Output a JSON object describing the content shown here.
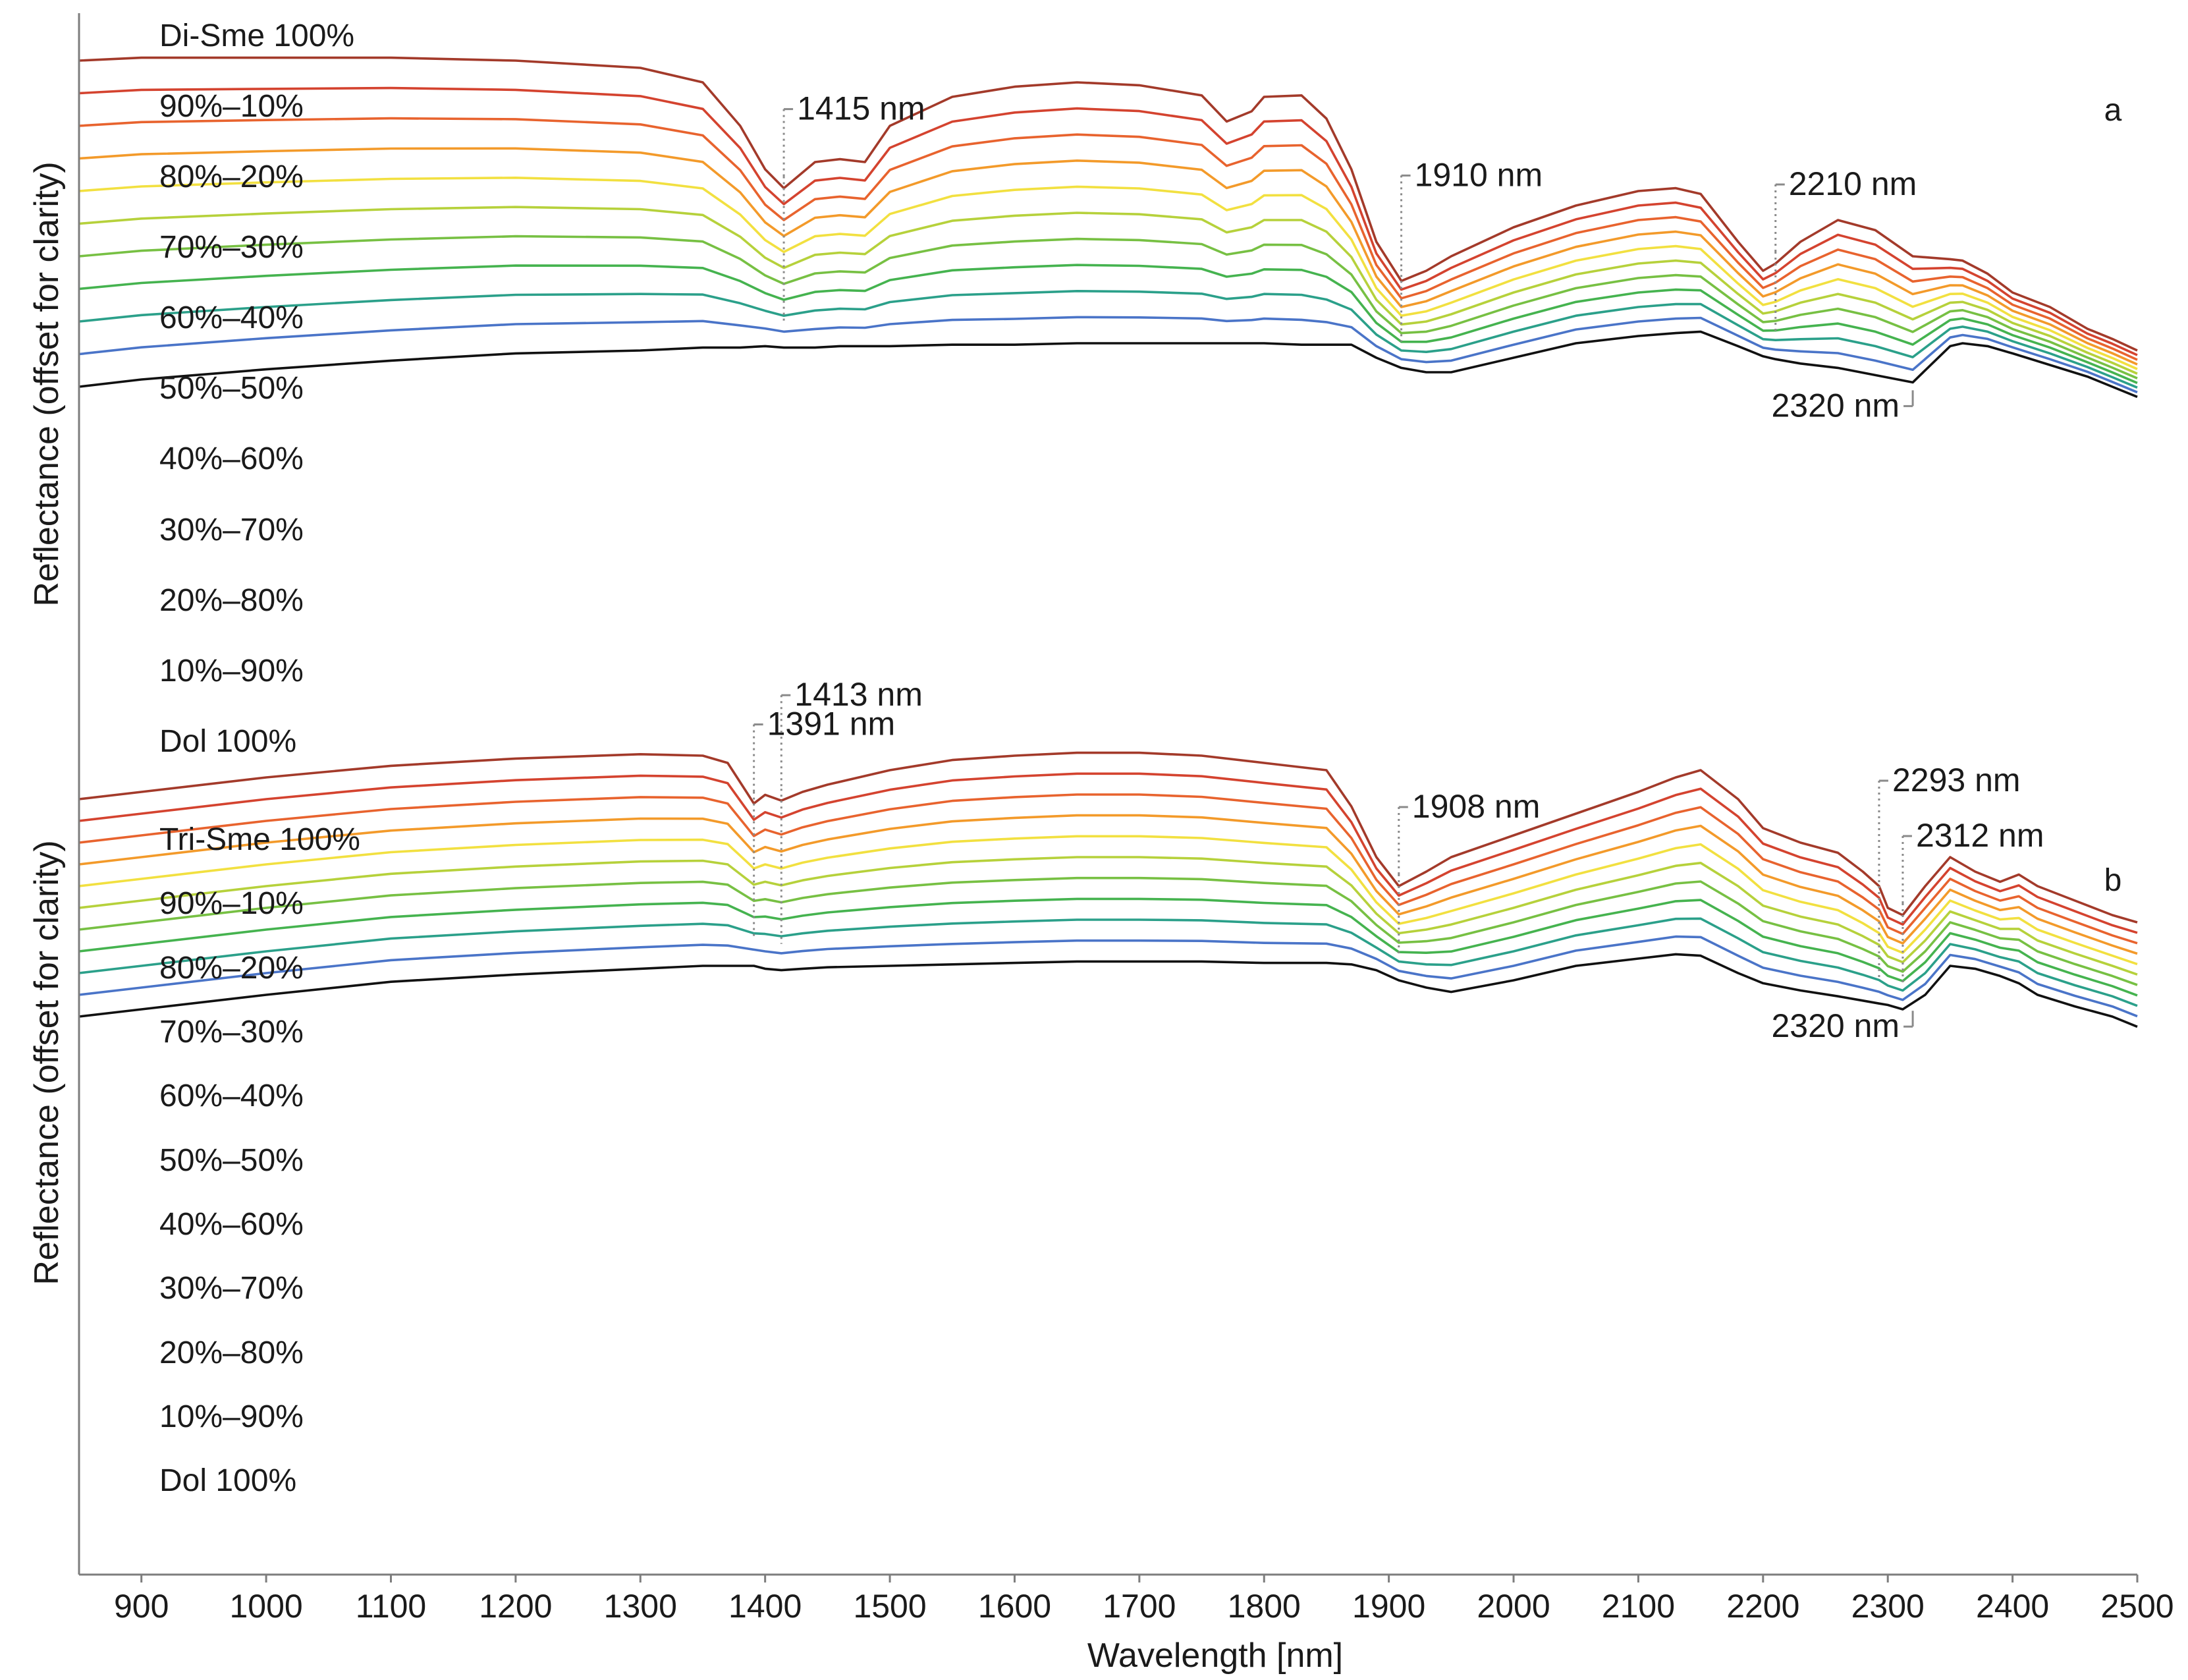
{
  "chart_data": {
    "type": "line",
    "title": "",
    "xlabel": "Wavelength [nm]",
    "ylabel": "Reflectance (offset for clarity)",
    "xlim": [
      850,
      2500
    ],
    "xticks": [
      900,
      1000,
      1100,
      1200,
      1300,
      1400,
      1500,
      1600,
      1700,
      1800,
      1900,
      2000,
      2100,
      2200,
      2300,
      2400,
      2500
    ],
    "grid": false,
    "y_unit": "relative reflectance with vertical offset (0 = bottom of each panel, larger = higher on page)",
    "panels": [
      {
        "id": "a",
        "letter": "a",
        "series_labels": [
          "Di-Sme 100%",
          "90%–10%",
          "80%–20%",
          "70%–30%",
          "60%–40%",
          "50%–50%",
          "40%–60%",
          "30%–70%",
          "20%–80%",
          "10%–90%",
          "Dol 100%"
        ],
        "series_colors": [
          "#a33a2a",
          "#d4432f",
          "#e8632e",
          "#f39a2a",
          "#f2e040",
          "#b6d13b",
          "#77c043",
          "#45b34f",
          "#2ba08a",
          "#4a74c8",
          "#111111"
        ],
        "endpoints": {
          "x": [
            850,
            900,
            1000,
            1100,
            1200,
            1300,
            1350,
            1380,
            1400,
            1415,
            1440,
            1460,
            1480,
            1500,
            1550,
            1600,
            1650,
            1700,
            1750,
            1770,
            1790,
            1800,
            1830,
            1850,
            1870,
            1890,
            1910,
            1930,
            1950,
            2000,
            2050,
            2100,
            2130,
            2150,
            2180,
            2200,
            2210,
            2230,
            2260,
            2290,
            2320,
            2350,
            2360,
            2380,
            2400,
            2430,
            2460,
            2480,
            2500
          ],
          "top_series": [
            54.0,
            54.2,
            54.2,
            54.2,
            54.0,
            53.5,
            52.5,
            49.5,
            46.5,
            45.2,
            47.0,
            47.2,
            47.0,
            49.5,
            51.5,
            52.2,
            52.5,
            52.3,
            51.6,
            49.8,
            50.5,
            51.5,
            51.6,
            50.0,
            46.5,
            41.5,
            38.8,
            39.5,
            40.5,
            42.5,
            44.0,
            45.0,
            45.2,
            44.8,
            41.5,
            39.5,
            40.0,
            41.5,
            43.0,
            42.3,
            40.5,
            40.3,
            40.2,
            39.3,
            38.0,
            37.0,
            35.5,
            34.8,
            34.0
          ],
          "bottom_series": [
            31.5,
            32.0,
            32.7,
            33.3,
            33.8,
            34.0,
            34.2,
            34.2,
            34.3,
            34.2,
            34.2,
            34.3,
            34.3,
            34.3,
            34.4,
            34.4,
            34.5,
            34.5,
            34.5,
            34.5,
            34.5,
            34.5,
            34.4,
            34.4,
            34.4,
            33.5,
            32.8,
            32.5,
            32.5,
            33.5,
            34.5,
            35.0,
            35.2,
            35.3,
            34.3,
            33.6,
            33.4,
            33.1,
            32.8,
            32.3,
            31.8,
            34.3,
            34.5,
            34.3,
            33.8,
            33.0,
            32.2,
            31.5,
            30.8
          ]
        },
        "annotations": [
          {
            "label": "1415 nm",
            "wavelength": 1415
          },
          {
            "label": "1910 nm",
            "wavelength": 1910
          },
          {
            "label": "2210 nm",
            "wavelength": 2210
          },
          {
            "label": "2320 nm",
            "wavelength": 2320
          }
        ]
      },
      {
        "id": "b",
        "letter": "b",
        "series_labels": [
          "Tri-Sme 100%",
          "90%–10%",
          "80%–20%",
          "70%–30%",
          "60%–40%",
          "50%–50%",
          "40%–60%",
          "30%–70%",
          "20%–80%",
          "10%–90%",
          "Dol 100%"
        ],
        "series_colors": [
          "#a33a2a",
          "#d4432f",
          "#e8632e",
          "#f39a2a",
          "#f2e040",
          "#b6d13b",
          "#77c043",
          "#45b34f",
          "#2ba08a",
          "#4a74c8",
          "#111111"
        ],
        "endpoints": {
          "x": [
            850,
            900,
            1000,
            1100,
            1200,
            1300,
            1350,
            1370,
            1385,
            1391,
            1400,
            1413,
            1430,
            1450,
            1500,
            1550,
            1600,
            1650,
            1700,
            1750,
            1800,
            1850,
            1870,
            1890,
            1908,
            1930,
            1950,
            2000,
            2050,
            2100,
            2130,
            2150,
            2180,
            2200,
            2230,
            2260,
            2280,
            2293,
            2300,
            2312,
            2330,
            2350,
            2370,
            2390,
            2405,
            2420,
            2450,
            2480,
            2500
          ],
          "top_series": [
            53.5,
            54.0,
            55.0,
            55.8,
            56.3,
            56.6,
            56.5,
            56.0,
            54.0,
            53.2,
            53.8,
            53.4,
            54.0,
            54.5,
            55.5,
            56.2,
            56.5,
            56.7,
            56.7,
            56.5,
            56.0,
            55.5,
            53.0,
            49.5,
            47.5,
            48.5,
            49.5,
            51.0,
            52.5,
            54.0,
            55.0,
            55.5,
            53.5,
            51.5,
            50.5,
            49.8,
            48.5,
            47.5,
            46.0,
            45.5,
            47.5,
            49.5,
            48.5,
            47.8,
            48.3,
            47.5,
            46.5,
            45.5,
            45.0
          ],
          "bottom_series": [
            38.5,
            39.0,
            40.0,
            40.9,
            41.4,
            41.8,
            42.0,
            42.0,
            42.0,
            42.0,
            41.8,
            41.7,
            41.8,
            41.9,
            42.0,
            42.1,
            42.2,
            42.3,
            42.3,
            42.3,
            42.2,
            42.2,
            42.1,
            41.7,
            41.0,
            40.5,
            40.2,
            41.0,
            42.0,
            42.5,
            42.8,
            42.7,
            41.5,
            40.8,
            40.3,
            39.9,
            39.6,
            39.4,
            39.3,
            39.0,
            40.0,
            42.0,
            41.8,
            41.3,
            40.8,
            40.0,
            39.2,
            38.5,
            37.8
          ]
        },
        "annotations": [
          {
            "label": "1391 nm",
            "wavelength": 1391
          },
          {
            "label": "1413 nm",
            "wavelength": 1413
          },
          {
            "label": "1908 nm",
            "wavelength": 1908
          },
          {
            "label": "2293 nm",
            "wavelength": 2293
          },
          {
            "label": "2312 nm",
            "wavelength": 2312
          },
          {
            "label": "2320 nm",
            "wavelength": 2320
          }
        ]
      }
    ]
  }
}
